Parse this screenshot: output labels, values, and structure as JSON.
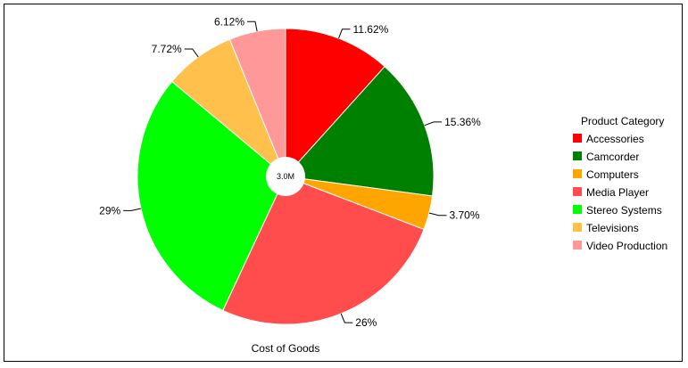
{
  "chart_data": {
    "type": "pie",
    "style": "donut",
    "center_label": "3.0M",
    "xlabel": "Cost of Goods",
    "legend": {
      "title": "Product Category",
      "placement": "right"
    },
    "slices": [
      {
        "name": "Accessories",
        "value": 11.62,
        "label": "11.62%",
        "color": "#ff0000"
      },
      {
        "name": "Camcorder",
        "value": 15.36,
        "label": "15.36%",
        "color": "#008000"
      },
      {
        "name": "Computers",
        "value": 3.7,
        "label": "3.70%",
        "color": "#ffa500"
      },
      {
        "name": "Media Player",
        "value": 26,
        "label": "26%",
        "color": "#ff4c4c"
      },
      {
        "name": "Stereo Systems",
        "value": 29,
        "label": "29%",
        "color": "#00ff00"
      },
      {
        "name": "Televisions",
        "value": 7.72,
        "label": "7.72%",
        "color": "#ffc04c"
      },
      {
        "name": "Video Production",
        "value": 6.12,
        "label": "6.12%",
        "color": "#ff9999"
      }
    ]
  }
}
